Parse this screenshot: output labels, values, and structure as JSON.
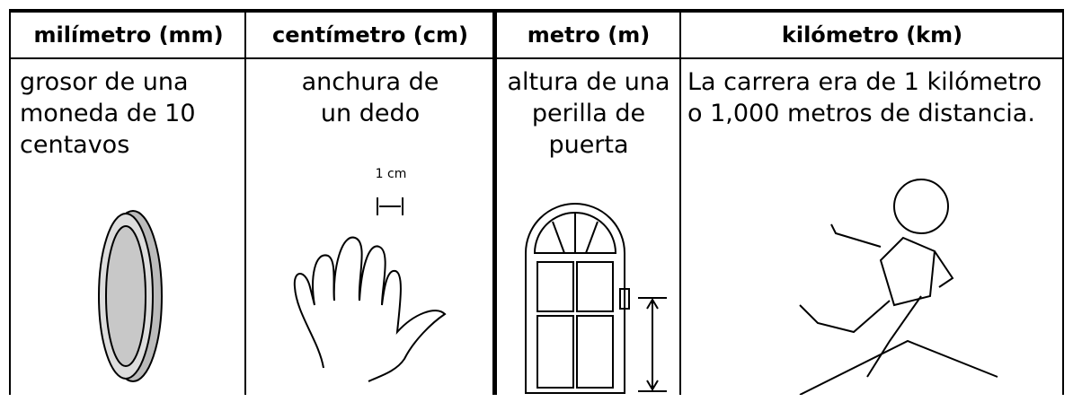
{
  "header": {
    "columns": [
      "milímetro (mm)",
      "centímetro (cm)",
      "metro (m)",
      "kilómetro (km)"
    ]
  },
  "row": {
    "cells": [
      {
        "lines": [
          "grosor de una",
          "moneda de 10",
          "centavos"
        ]
      },
      {
        "lines": [
          "anchura de",
          "un dedo"
        ],
        "annotation": "1 cm"
      },
      {
        "lines": [
          "altura de una",
          "perilla de",
          "puerta"
        ]
      },
      {
        "lines": [
          "La carrera era de 1 kilómetro",
          "o 1,000 metros de distancia."
        ]
      }
    ]
  }
}
